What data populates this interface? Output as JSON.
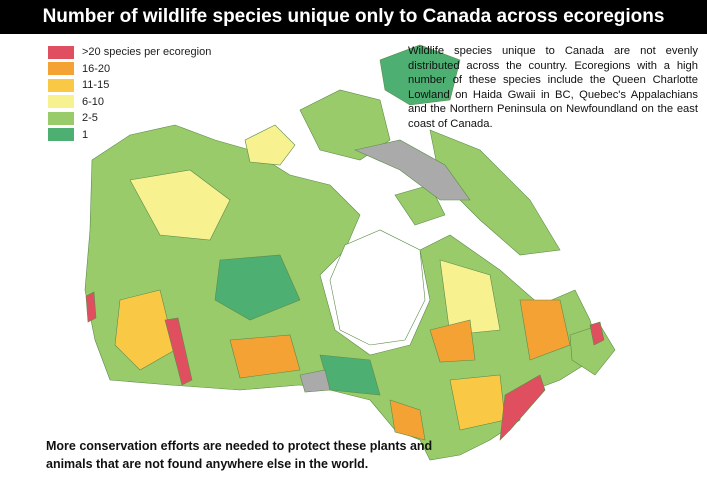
{
  "header": {
    "title": "Number of wildlife species unique only to Canada across ecoregions"
  },
  "legend": [
    {
      "label": ">20 species per ecoregion",
      "color": "#e04f5f"
    },
    {
      "label": "16-20",
      "color": "#f4a233"
    },
    {
      "label": "11-15",
      "color": "#f9c945"
    },
    {
      "label": "6-10",
      "color": "#f7f190"
    },
    {
      "label": "2-5",
      "color": "#9acb6a"
    },
    {
      "label": "1",
      "color": "#4daf72"
    }
  ],
  "description": "Wildlife species unique to Canada are not evenly distributed across the country. Ecoregions with a high number of these species include the Queen Charlotte Lowland on Haida Gwaii in BC, Quebec's Appalachians and the Northern Peninsula on Newfoundland on the east coast of Canada.",
  "footer": "More conservation efforts are needed to protect these plants and animals that are not found anywhere else in the world."
}
